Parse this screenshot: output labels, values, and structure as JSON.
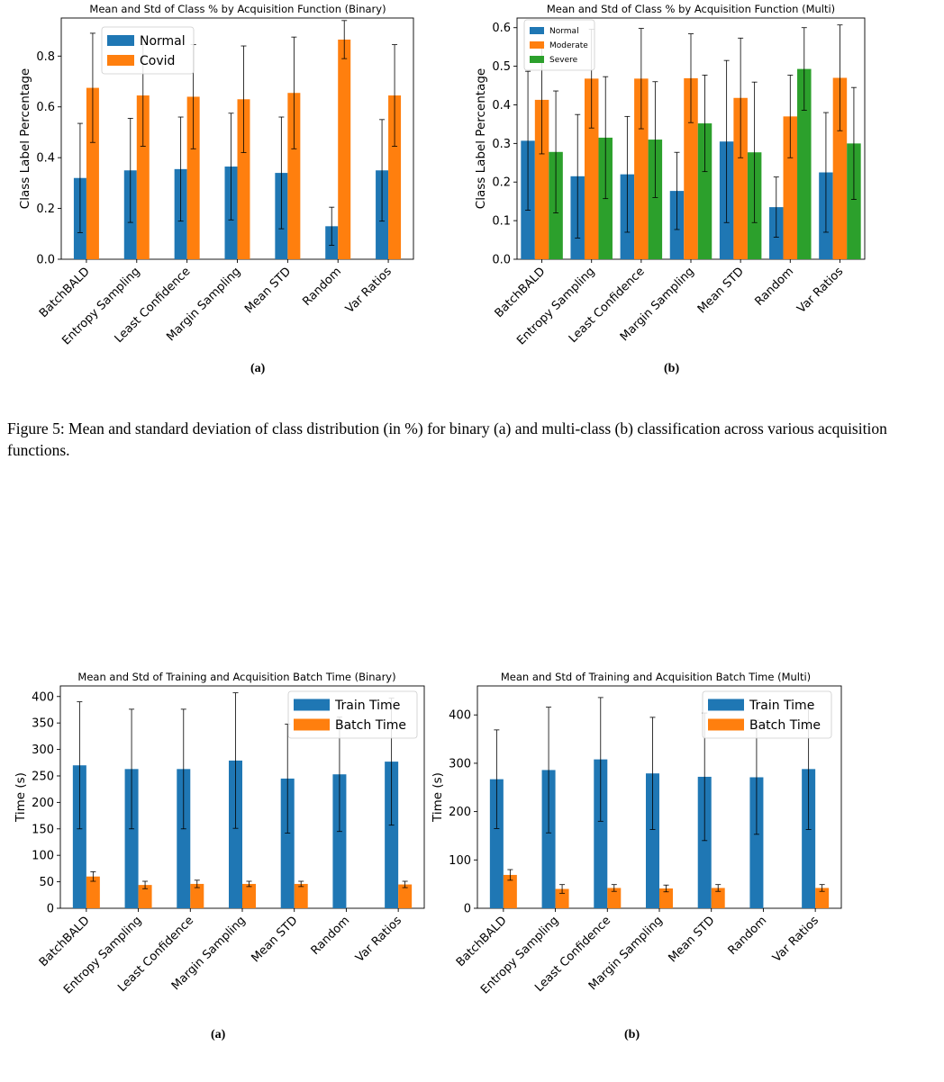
{
  "chart_data": [
    {
      "type": "bar",
      "title": "Mean and Std of Class % by Acquisition Function (Binary)",
      "ylabel": "Class Label Percentage",
      "xlabel": "",
      "categories": [
        "BatchBALD",
        "Entropy Sampling",
        "Least Confidence",
        "Margin Sampling",
        "Mean STD",
        "Random",
        "Var Ratios"
      ],
      "ylim": [
        0,
        0.95
      ],
      "yticks": [
        0.0,
        0.2,
        0.4,
        0.6,
        0.8
      ],
      "ytick_labels": [
        "0.0",
        "0.2",
        "0.4",
        "0.6",
        "0.8"
      ],
      "legend_position": "top-left",
      "colors": [
        "#1f77b4",
        "#ff7f0e"
      ],
      "series": [
        {
          "name": "Normal",
          "values": [
            0.32,
            0.35,
            0.355,
            0.365,
            0.34,
            0.13,
            0.35
          ],
          "err": [
            0.215,
            0.205,
            0.205,
            0.21,
            0.22,
            0.075,
            0.2
          ]
        },
        {
          "name": "Covid",
          "values": [
            0.675,
            0.645,
            0.64,
            0.63,
            0.655,
            0.865,
            0.645
          ],
          "err": [
            0.215,
            0.2,
            0.205,
            0.21,
            0.22,
            0.075,
            0.2
          ]
        }
      ],
      "panel_label": "(a)"
    },
    {
      "type": "bar",
      "title": "Mean and Std of Class % by Acquisition Function (Multi)",
      "ylabel": "Class Label Percentage",
      "xlabel": "",
      "categories": [
        "BatchBALD",
        "Entropy Sampling",
        "Least Confidence",
        "Margin Sampling",
        "Mean STD",
        "Random",
        "Var Ratios"
      ],
      "ylim": [
        0,
        0.625
      ],
      "yticks": [
        0.0,
        0.1,
        0.2,
        0.3,
        0.4,
        0.5,
        0.6
      ],
      "ytick_labels": [
        "0.0",
        "0.1",
        "0.2",
        "0.3",
        "0.4",
        "0.5",
        "0.6"
      ],
      "legend_position": "top-left",
      "colors": [
        "#1f77b4",
        "#ff7f0e",
        "#2ca02c"
      ],
      "series": [
        {
          "name": "Normal",
          "values": [
            0.307,
            0.215,
            0.22,
            0.177,
            0.305,
            0.135,
            0.225
          ],
          "err": [
            0.18,
            0.16,
            0.15,
            0.1,
            0.21,
            0.078,
            0.155
          ]
        },
        {
          "name": "Moderate",
          "values": [
            0.413,
            0.468,
            0.468,
            0.469,
            0.418,
            0.37,
            0.47
          ],
          "err": [
            0.14,
            0.128,
            0.13,
            0.115,
            0.155,
            0.107,
            0.137
          ]
        },
        {
          "name": "Severe",
          "values": [
            0.278,
            0.315,
            0.31,
            0.352,
            0.277,
            0.493,
            0.3
          ],
          "err": [
            0.158,
            0.158,
            0.15,
            0.125,
            0.182,
            0.107,
            0.145
          ]
        }
      ],
      "panel_label": "(b)"
    },
    {
      "type": "bar",
      "title": "Mean and Std of Training and Acquisition Batch Time (Binary)",
      "ylabel": "Time (s)",
      "xlabel": "",
      "categories": [
        "BatchBALD",
        "Entropy Sampling",
        "Least Confidence",
        "Margin Sampling",
        "Mean STD",
        "Random",
        "Var Ratios"
      ],
      "ylim": [
        0,
        420
      ],
      "yticks": [
        0,
        50,
        100,
        150,
        200,
        250,
        300,
        350,
        400
      ],
      "ytick_labels": [
        "0",
        "50",
        "100",
        "150",
        "200",
        "250",
        "300",
        "350",
        "400"
      ],
      "legend_position": "top-right",
      "colors": [
        "#1f77b4",
        "#ff7f0e"
      ],
      "series": [
        {
          "name": "Train Time",
          "values": [
            270,
            263,
            263,
            279,
            245,
            253,
            277
          ],
          "err": [
            120,
            113,
            113,
            128,
            103,
            108,
            120
          ]
        },
        {
          "name": "Batch Time",
          "values": [
            60,
            44,
            46,
            46,
            46,
            0,
            45
          ],
          "err": [
            9,
            7,
            7,
            5,
            5,
            0,
            6
          ]
        }
      ],
      "panel_label": "(a)"
    },
    {
      "type": "bar",
      "title": "Mean and Std of Training and Acquisition Batch Time (Multi)",
      "ylabel": "Time (s)",
      "xlabel": "",
      "categories": [
        "BatchBALD",
        "Entropy Sampling",
        "Least Confidence",
        "Margin Sampling",
        "Mean STD",
        "Random",
        "Var Ratios"
      ],
      "ylim": [
        0,
        460
      ],
      "yticks": [
        0,
        100,
        200,
        300,
        400
      ],
      "ytick_labels": [
        "0",
        "100",
        "200",
        "300",
        "400"
      ],
      "legend_position": "top-right",
      "colors": [
        "#1f77b4",
        "#ff7f0e"
      ],
      "series": [
        {
          "name": "Train Time",
          "values": [
            267,
            286,
            308,
            279,
            272,
            271,
            288
          ],
          "err": [
            102,
            130,
            128,
            116,
            132,
            118,
            125
          ]
        },
        {
          "name": "Batch Time",
          "values": [
            69,
            40,
            42,
            41,
            42,
            0,
            42
          ],
          "err": [
            11,
            9,
            7,
            7,
            7,
            0,
            7
          ]
        }
      ],
      "panel_label": "(b)"
    }
  ],
  "captions": {
    "figure5": "Figure 5: Mean and standard deviation of class distribution (in %) for binary (a) and multi-class (b) classification across various acquisition functions."
  }
}
